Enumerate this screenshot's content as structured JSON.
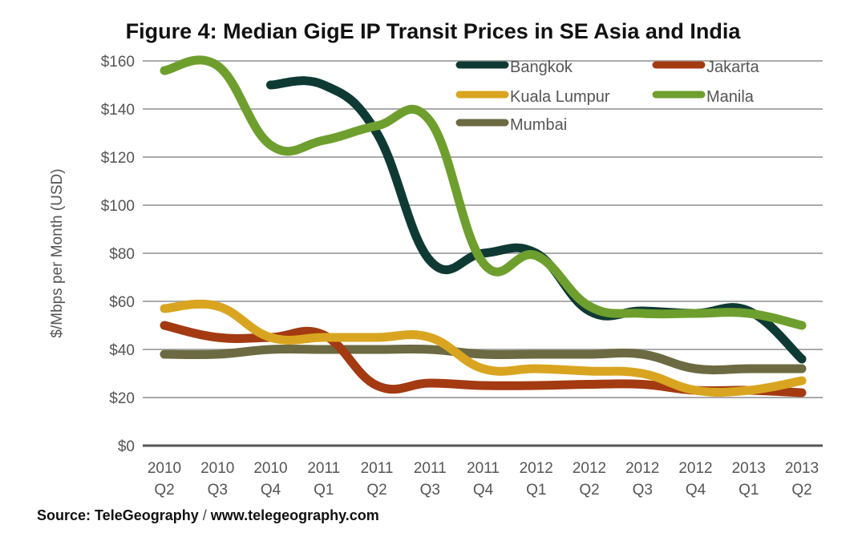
{
  "chart_data": {
    "type": "line",
    "title": "Figure 4: Median GigE IP Transit Prices in SE Asia and India",
    "xlabel": "",
    "ylabel": "$/Mbps per Month (USD)",
    "ylim": [
      0,
      160
    ],
    "yticks": [
      0,
      20,
      40,
      60,
      80,
      100,
      120,
      140,
      160
    ],
    "ytick_labels": [
      "$0",
      "$20",
      "$40",
      "$60",
      "$80",
      "$100",
      "$120",
      "$140",
      "$160"
    ],
    "grid": true,
    "legend_position": "top-right",
    "categories": [
      {
        "year": "2010",
        "quarter": "Q2"
      },
      {
        "year": "2010",
        "quarter": "Q3"
      },
      {
        "year": "2010",
        "quarter": "Q4"
      },
      {
        "year": "2011",
        "quarter": "Q1"
      },
      {
        "year": "2011",
        "quarter": "Q2"
      },
      {
        "year": "2011",
        "quarter": "Q3"
      },
      {
        "year": "2011",
        "quarter": "Q4"
      },
      {
        "year": "2012",
        "quarter": "Q1"
      },
      {
        "year": "2012",
        "quarter": "Q2"
      },
      {
        "year": "2012",
        "quarter": "Q3"
      },
      {
        "year": "2012",
        "quarter": "Q4"
      },
      {
        "year": "2013",
        "quarter": "Q1"
      },
      {
        "year": "2013",
        "quarter": "Q2"
      }
    ],
    "series": [
      {
        "name": "Bangkok",
        "color": "#0f3a34",
        "values": [
          null,
          null,
          150,
          150,
          130,
          77,
          80,
          80,
          56,
          56,
          55,
          56,
          36
        ]
      },
      {
        "name": "Jakarta",
        "color": "#a33a12",
        "values": [
          50,
          45,
          45,
          46,
          25,
          26,
          25,
          25,
          25.5,
          25.5,
          23,
          23,
          22
        ]
      },
      {
        "name": "Kuala Lumpur",
        "color": "#d9a520",
        "values": [
          57,
          58,
          45,
          45,
          45,
          45,
          32,
          32,
          31,
          30,
          23,
          23,
          27
        ]
      },
      {
        "name": "Manila",
        "color": "#6e9f2e",
        "values": [
          156,
          158,
          125,
          127,
          133,
          135,
          76,
          79,
          58,
          55,
          55,
          55,
          50
        ]
      },
      {
        "name": "Mumbai",
        "color": "#6b6a42",
        "values": [
          38,
          38,
          40,
          40,
          40,
          40,
          38,
          38,
          38,
          38,
          32,
          32,
          32
        ]
      }
    ]
  },
  "source": {
    "label": "Source: TeleGeography",
    "separator": "/",
    "url": "www.telegeography.com"
  }
}
